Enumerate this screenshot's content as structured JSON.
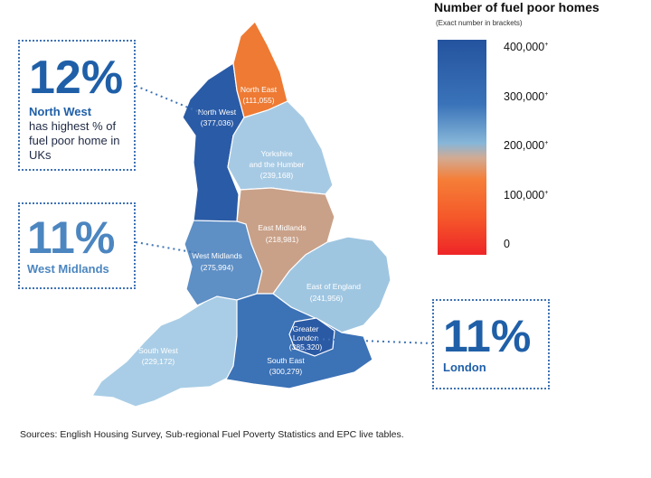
{
  "legend": {
    "title": "Number of fuel poor homes",
    "subtitle": "(Exact number in brackets)",
    "ticks": [
      "400,000",
      "300,000",
      "200,000",
      "100,000",
      "0"
    ],
    "tick_suffix": "+",
    "colors": [
      "#24539e",
      "#3a73b9",
      "#86b6d8",
      "#d2ab93",
      "#f57e37",
      "#ee2528"
    ]
  },
  "regions": [
    {
      "name": "North East",
      "value": "(111,055)",
      "color": "#ee7a33"
    },
    {
      "name": "North West",
      "value": "(377,036)",
      "color": "#2a5ba6"
    },
    {
      "name": "Yorkshire and the Humber",
      "line1": "Yorkshire",
      "line2": "and the Humber",
      "value": "(239,168)",
      "color": "#a7cae4"
    },
    {
      "name": "East Midlands",
      "value": "(218,981)",
      "color": "#c9a188"
    },
    {
      "name": "West Midlands",
      "value": "(275,994)",
      "color": "#5e8fc5"
    },
    {
      "name": "East of England",
      "value": "(241,956)",
      "color": "#9fc6e1"
    },
    {
      "name": "Greater London",
      "line1": "Greater",
      "line2": "London",
      "value": "(385,320)",
      "color": "#2b5aa5"
    },
    {
      "name": "South East",
      "value": "(300,279)",
      "color": "#3c72b6"
    },
    {
      "name": "South West",
      "value": "(229,172)",
      "color": "#a9cde6"
    }
  ],
  "callouts": {
    "north_west": {
      "percent": "12%",
      "region": "North West",
      "text": "has highest % of fuel poor home in UKs"
    },
    "west_midlands": {
      "percent": "11%",
      "region": "West Midlands"
    },
    "london": {
      "percent": "11%",
      "region": "London"
    }
  },
  "source": "Sources: English Housing Survey, Sub-regional Fuel Poverty Statistics and EPC live tables."
}
